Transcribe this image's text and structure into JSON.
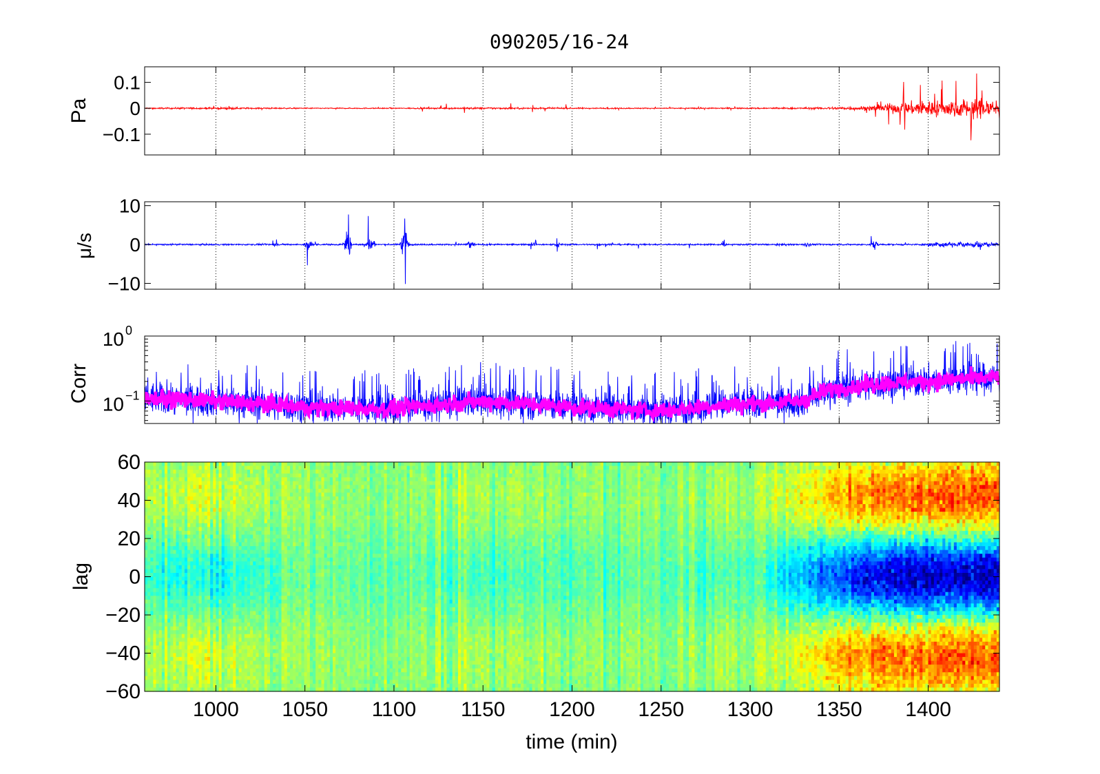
{
  "figure": {
    "title": "090205/16-24"
  },
  "colors": {
    "pressure": "#ff0000",
    "velocity": "#0000ff",
    "corr_raw": "#0000ff",
    "corr_smooth": "#ff00ff",
    "colormap": "jet"
  },
  "chart_data": [
    {
      "type": "line",
      "panel": "pressure",
      "ylabel": "Pa",
      "xlim": [
        960,
        1440
      ],
      "ylim": [
        -0.18,
        0.16
      ],
      "yticks": [
        0.1,
        0,
        -0.1
      ],
      "ytick_labels": [
        "0.1",
        "0",
        "−0.1"
      ],
      "grid": "x-dotted",
      "series": [
        {
          "color": "#ff0000",
          "x": [
            960,
            1000,
            1050,
            1100,
            1150,
            1200,
            1250,
            1300,
            1340,
            1360,
            1375,
            1380,
            1390,
            1400,
            1410,
            1420,
            1430,
            1440
          ],
          "envelope": [
            0.004,
            0.006,
            0.003,
            0.003,
            0.006,
            0.004,
            0.003,
            0.004,
            0.006,
            0.012,
            0.02,
            0.03,
            0.04,
            0.05,
            0.05,
            0.06,
            0.06,
            0.07
          ],
          "peaks": [
            0.005,
            0.01,
            0.004,
            0.005,
            0.03,
            0.015,
            0.005,
            0.008,
            0.01,
            0.03,
            0.06,
            0.13,
            0.1,
            0.12,
            0.13,
            0.13,
            0.14,
            0.18
          ]
        }
      ]
    },
    {
      "type": "line",
      "panel": "velocity",
      "ylabel": "μ/s",
      "xlim": [
        960,
        1440
      ],
      "ylim": [
        -11.5,
        11
      ],
      "yticks": [
        10,
        0,
        -10
      ],
      "ytick_labels": [
        "10",
        "0",
        "−10"
      ],
      "grid": "x-dotted",
      "series": [
        {
          "color": "#0000ff",
          "bursts": [
            {
              "x": 1033,
              "amp": 1.5
            },
            {
              "x": 1052,
              "amp": 5.5
            },
            {
              "x": 1074,
              "amp": 11
            },
            {
              "x": 1087,
              "amp": 8
            },
            {
              "x": 1106,
              "amp": 11
            },
            {
              "x": 1143,
              "amp": 4
            },
            {
              "x": 1178,
              "amp": 1.5
            },
            {
              "x": 1192,
              "amp": 2
            },
            {
              "x": 1214,
              "amp": 1.2
            },
            {
              "x": 1285,
              "amp": 1.3
            },
            {
              "x": 1318,
              "amp": 1.2
            },
            {
              "x": 1332,
              "amp": 2.5
            },
            {
              "x": 1370,
              "amp": 3.5
            },
            {
              "x": 1428,
              "amp": 1.8
            }
          ]
        }
      ]
    },
    {
      "type": "line",
      "panel": "correlation",
      "ylabel": "Corr",
      "yscale": "log",
      "xlim": [
        960,
        1440
      ],
      "ylim": [
        0.045,
        1
      ],
      "yticks": [
        1,
        0.1
      ],
      "ytick_labels": [
        {
          "base": "10",
          "exp": "0"
        },
        {
          "base": "10",
          "exp": "−1"
        }
      ],
      "grid": "x-dotted",
      "series": [
        {
          "color": "#0000ff",
          "x": [
            960,
            1000,
            1050,
            1100,
            1150,
            1200,
            1250,
            1280,
            1300,
            1330,
            1345,
            1360,
            1380,
            1400,
            1420,
            1440
          ],
          "level": [
            0.11,
            0.1,
            0.08,
            0.075,
            0.1,
            0.08,
            0.07,
            0.085,
            0.09,
            0.1,
            0.15,
            0.17,
            0.19,
            0.2,
            0.22,
            0.23
          ]
        },
        {
          "color": "#ff00ff",
          "x": [
            960,
            1000,
            1050,
            1100,
            1150,
            1200,
            1250,
            1280,
            1300,
            1330,
            1345,
            1360,
            1380,
            1400,
            1420,
            1440
          ],
          "level": [
            0.11,
            0.1,
            0.08,
            0.075,
            0.1,
            0.08,
            0.07,
            0.085,
            0.09,
            0.1,
            0.15,
            0.17,
            0.19,
            0.2,
            0.22,
            0.23
          ]
        }
      ]
    },
    {
      "type": "heatmap",
      "panel": "lag",
      "ylabel": "lag",
      "xlabel": "time (min)",
      "xlim": [
        960,
        1440
      ],
      "ylim": [
        -60,
        60
      ],
      "xticks": [
        1000,
        1050,
        1100,
        1150,
        1200,
        1250,
        1300,
        1350,
        1400
      ],
      "xtick_labels": [
        "1000",
        "1050",
        "1100",
        "1150",
        "1200",
        "1250",
        "1300",
        "1350",
        "1400"
      ],
      "yticks": [
        60,
        40,
        20,
        0,
        -20,
        -40,
        -60
      ],
      "ytick_labels": [
        "60",
        "40",
        "20",
        "0",
        "−20",
        "−40",
        "−60"
      ],
      "colormap": "jet",
      "structure": {
        "x": [
          960,
          1000,
          1020,
          1050,
          1100,
          1150,
          1200,
          1250,
          1285,
          1300,
          1340,
          1360,
          1380,
          1400,
          1420,
          1440
        ],
        "center_strength": [
          0.15,
          0.25,
          0.15,
          0.05,
          0.05,
          0.12,
          0.08,
          0.05,
          0.12,
          0.08,
          0.5,
          0.75,
          0.85,
          0.9,
          0.9,
          0.95
        ],
        "side_lobe_lags": [
          40,
          -40
        ]
      }
    }
  ]
}
